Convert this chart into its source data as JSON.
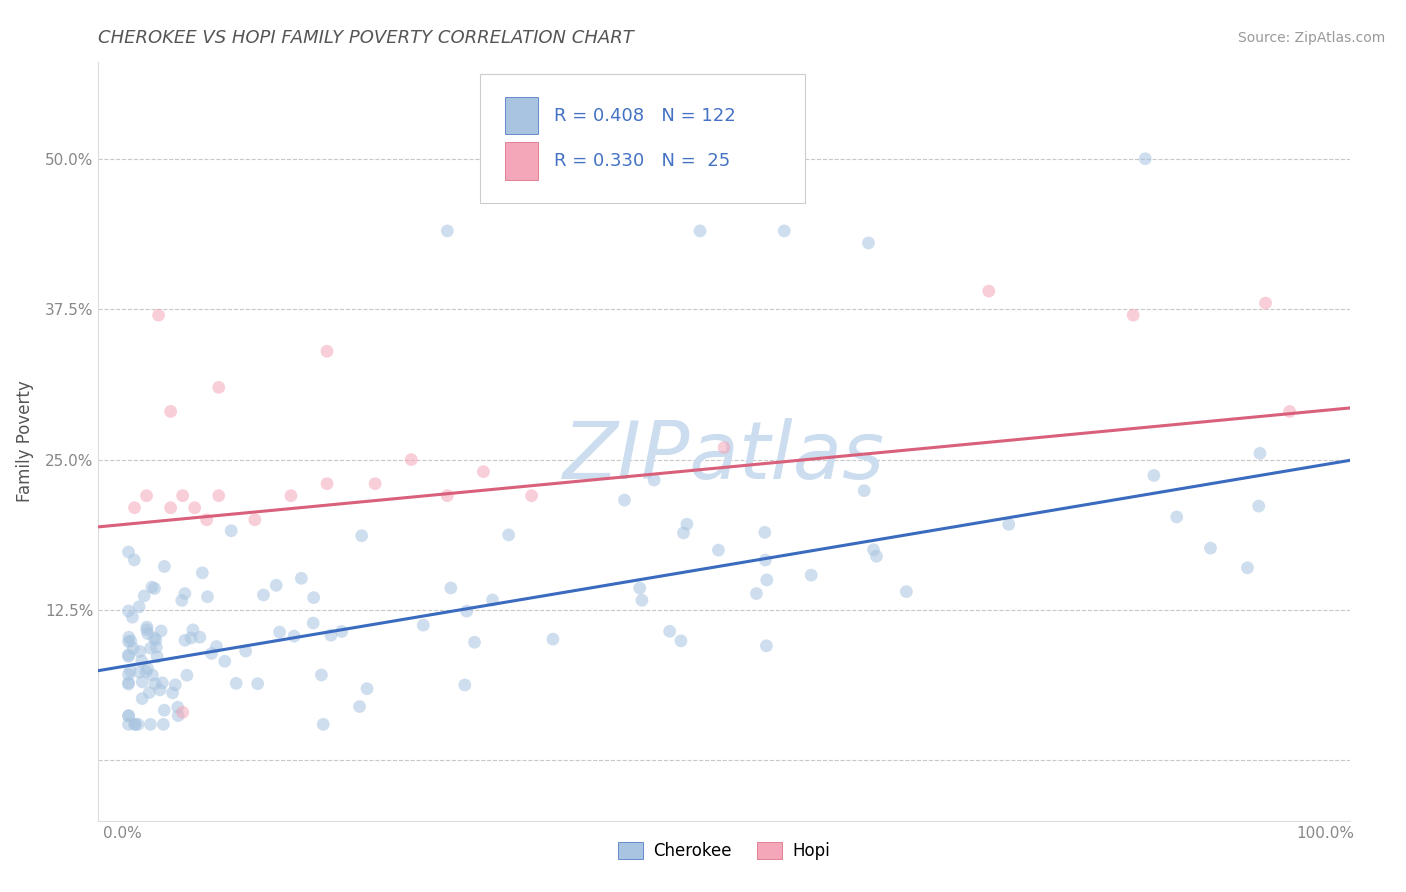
{
  "title": "CHEROKEE VS HOPI FAMILY POVERTY CORRELATION CHART",
  "source": "Source: ZipAtlas.com",
  "ylabel": "Family Poverty",
  "watermark": "ZIPatlas",
  "xlim": [
    -0.02,
    1.02
  ],
  "ylim": [
    -0.05,
    0.58
  ],
  "xticks": [
    0.0,
    1.0
  ],
  "xticklabels": [
    "0.0%",
    "100.0%"
  ],
  "yticks": [
    0.0,
    0.125,
    0.25,
    0.375,
    0.5
  ],
  "yticklabels": [
    "",
    "12.5%",
    "25.0%",
    "37.5%",
    "50.0%"
  ],
  "cherokee_R": 0.408,
  "cherokee_N": 122,
  "hopi_R": 0.33,
  "hopi_N": 25,
  "cherokee_color": "#a8c4e0",
  "hopi_color": "#f4a7b9",
  "cherokee_line_color": "#3a6bbf",
  "hopi_line_color": "#d9607a",
  "legend_text_color": "#4472c4",
  "title_color": "#555555",
  "source_color": "#999999",
  "watermark_color": "#ccddf0",
  "grid_color": "#c8c8c8",
  "cherokee_slope": 0.168,
  "cherokee_intercept": 0.078,
  "hopi_slope": 0.095,
  "hopi_intercept": 0.196,
  "marker_size": 85,
  "marker_alpha": 0.55,
  "line_alpha": 1.0,
  "line_width": 2.2,
  "background_color": "#ffffff"
}
